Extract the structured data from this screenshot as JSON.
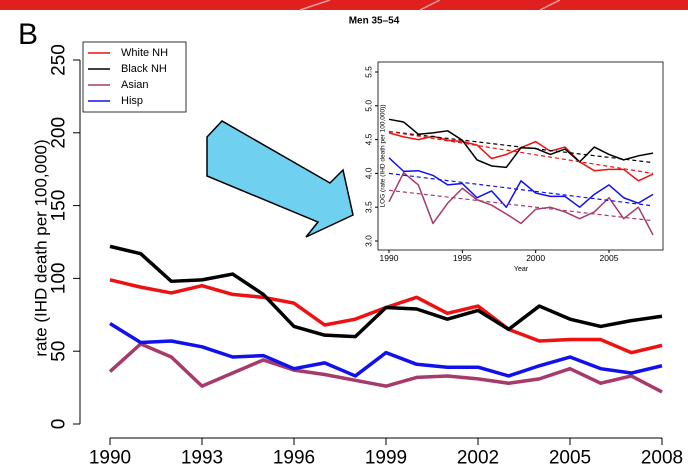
{
  "chart_data": [
    {
      "type": "line",
      "panel_label": "B",
      "title": "Men 35–54",
      "ylabel": "rate (IHD death per 100,000)",
      "x": [
        1990,
        1991,
        1992,
        1993,
        1994,
        1995,
        1996,
        1997,
        1998,
        1999,
        2000,
        2001,
        2002,
        2003,
        2004,
        2005,
        2006,
        2007,
        2008
      ],
      "xlim": [
        1990,
        2008
      ],
      "xticks": [
        1990,
        1993,
        1996,
        1999,
        2002,
        2005,
        2008
      ],
      "ylim": [
        0,
        250
      ],
      "yticks": [
        0,
        50,
        100,
        150,
        200,
        250
      ],
      "legend": "top-left",
      "series": [
        {
          "name": "White NH",
          "color": "#ee1111",
          "values": [
            99,
            94,
            90,
            95,
            89,
            87,
            83,
            68,
            72,
            80,
            87,
            76,
            81,
            65,
            57,
            58,
            58,
            49,
            54
          ]
        },
        {
          "name": "Black NH",
          "color": "#000000",
          "values": [
            122,
            117,
            98,
            99,
            103,
            89,
            67,
            61,
            60,
            80,
            79,
            72,
            78,
            65,
            81,
            72,
            67,
            71,
            74
          ]
        },
        {
          "name": "Asian",
          "color": "#a83a6b",
          "values": [
            36,
            55,
            46,
            26,
            35,
            44,
            37,
            34,
            30,
            26,
            32,
            33,
            31,
            28,
            31,
            38,
            28,
            33,
            22
          ]
        },
        {
          "name": "Hisp",
          "color": "#1111ee",
          "values": [
            69,
            56,
            57,
            53,
            46,
            47,
            38,
            42,
            33,
            49,
            41,
            39,
            39,
            33,
            40,
            46,
            38,
            35,
            40
          ]
        }
      ]
    },
    {
      "type": "line",
      "ylabel": "LOG (rate (IHD death per 100,000))",
      "xlabel": "Year",
      "x": [
        1990,
        1991,
        1992,
        1993,
        1994,
        1995,
        1996,
        1997,
        1998,
        1999,
        2000,
        2001,
        2002,
        2003,
        2004,
        2005,
        2006,
        2007,
        2008
      ],
      "xlim": [
        1990,
        2008
      ],
      "xticks": [
        1990,
        1995,
        2000,
        2005
      ],
      "ylim": [
        3,
        5.5
      ],
      "yticks": [
        {
          "value": 3,
          "label": "3.0"
        },
        3.5,
        {
          "value": 4,
          "label": "4.0"
        },
        4.5,
        {
          "value": 5,
          "label": "5.0"
        },
        5.5
      ],
      "series": [
        {
          "color": "#ee1111",
          "values": [
            4.6,
            4.54,
            4.5,
            4.55,
            4.49,
            4.47,
            4.42,
            4.22,
            4.28,
            4.38,
            4.47,
            4.33,
            4.39,
            4.17,
            4.04,
            4.06,
            4.06,
            3.89,
            3.99
          ]
        },
        {
          "color": "#000000",
          "values": [
            4.8,
            4.76,
            4.58,
            4.6,
            4.63,
            4.49,
            4.2,
            4.11,
            4.09,
            4.38,
            4.37,
            4.28,
            4.36,
            4.17,
            4.39,
            4.28,
            4.2,
            4.26,
            4.3
          ]
        },
        {
          "color": "#a83a6b",
          "values": [
            3.58,
            4.01,
            3.83,
            3.26,
            3.56,
            3.78,
            3.61,
            3.53,
            3.4,
            3.26,
            3.47,
            3.5,
            3.43,
            3.33,
            3.43,
            3.64,
            3.33,
            3.5,
            3.09
          ]
        },
        {
          "color": "#1111ee",
          "values": [
            4.23,
            4.03,
            4.04,
            3.97,
            3.83,
            3.85,
            3.64,
            3.74,
            3.5,
            3.89,
            3.71,
            3.66,
            3.66,
            3.5,
            3.69,
            3.83,
            3.64,
            3.56,
            3.69
          ]
        },
        {
          "color": "#000000",
          "dashed": true,
          "x": [
            1990,
            2008
          ],
          "values": [
            4.62,
            4.16
          ]
        },
        {
          "color": "#ee1111",
          "dashed": true,
          "x": [
            1990,
            2008
          ],
          "values": [
            4.62,
            4.0
          ]
        },
        {
          "color": "#a83a6b",
          "dashed": true,
          "x": [
            1990,
            2008
          ],
          "values": [
            3.75,
            3.3
          ]
        },
        {
          "color": "#1111ee",
          "dashed": true,
          "x": [
            1990,
            2008
          ],
          "values": [
            4.0,
            3.52
          ]
        }
      ]
    }
  ]
}
